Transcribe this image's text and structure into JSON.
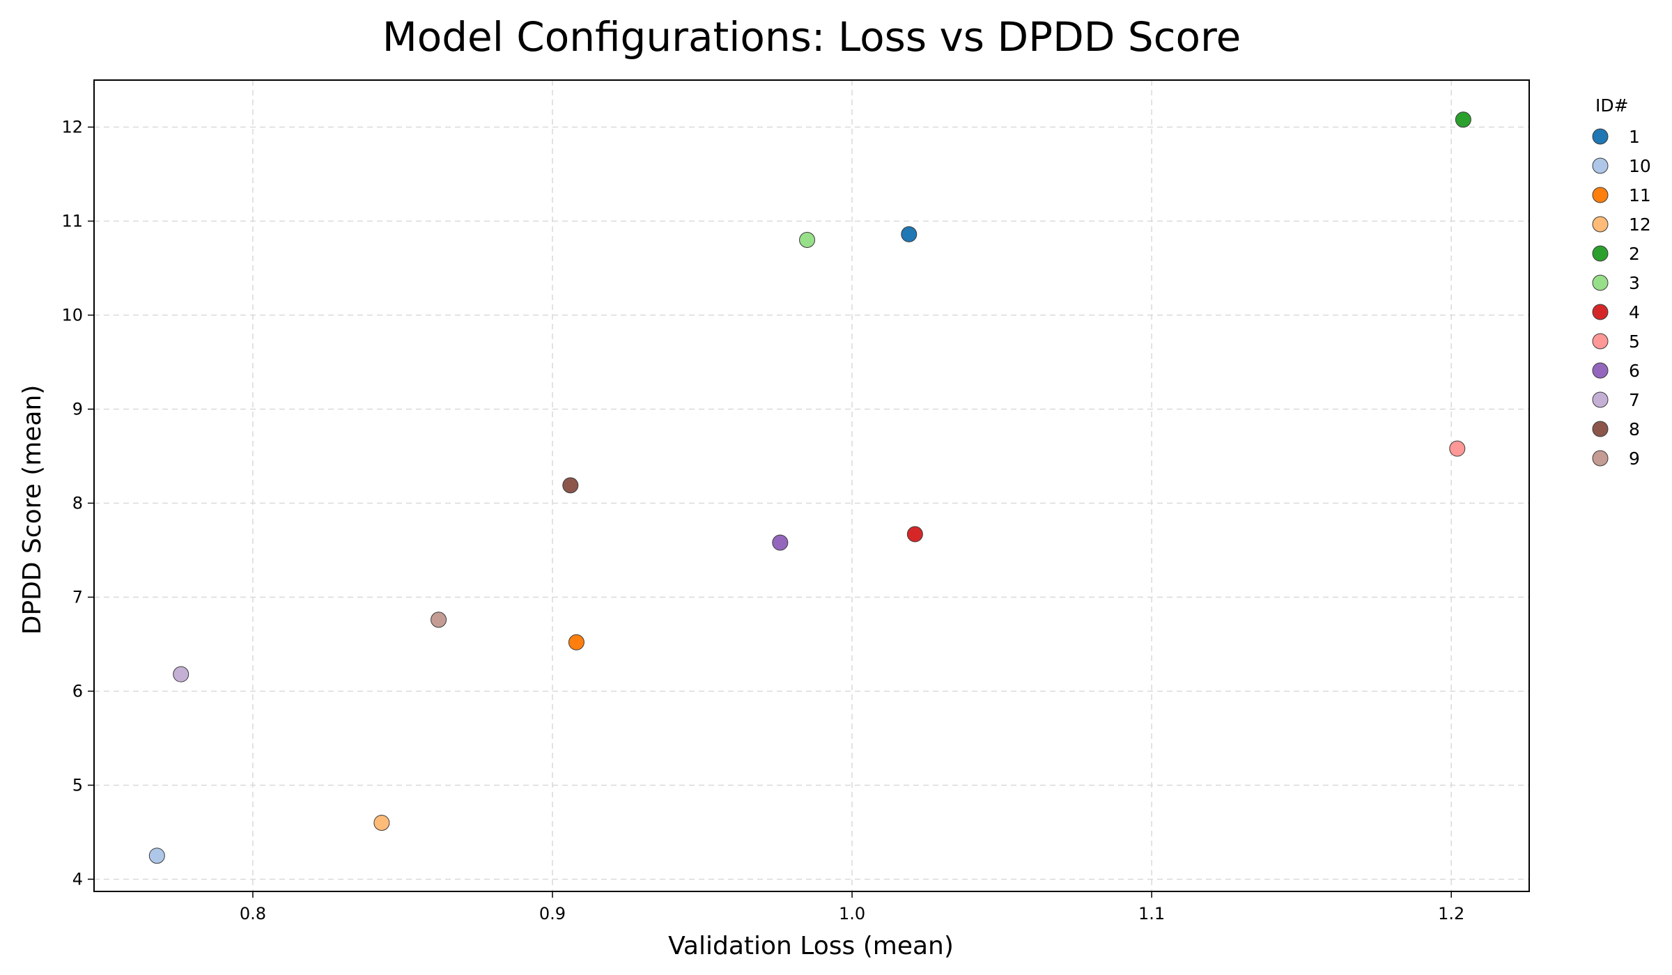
{
  "chart_data": {
    "type": "scatter",
    "title": "Model Configurations: Loss vs DPDD Score",
    "xlabel": "Validation Loss (mean)",
    "ylabel": "DPDD Score (mean)",
    "xlim": [
      0.747,
      1.226
    ],
    "ylim": [
      3.87,
      12.5
    ],
    "xticks": [
      0.8,
      0.9,
      1.0,
      1.1,
      1.2
    ],
    "xtick_labels": [
      "0.8",
      "0.9",
      "1.0",
      "1.1",
      "1.2"
    ],
    "yticks": [
      4,
      5,
      6,
      7,
      8,
      9,
      10,
      11,
      12
    ],
    "ytick_labels": [
      "4",
      "5",
      "6",
      "7",
      "8",
      "9",
      "10",
      "11",
      "12"
    ],
    "grid": true,
    "legend": {
      "title": "ID#",
      "placement": "outside-right"
    },
    "series": [
      {
        "name": "1",
        "color": "#1f77b4",
        "x": 1.019,
        "y": 10.86
      },
      {
        "name": "10",
        "color": "#aec7e8",
        "x": 0.768,
        "y": 4.25
      },
      {
        "name": "11",
        "color": "#ff7f0e",
        "x": 0.908,
        "y": 6.52
      },
      {
        "name": "12",
        "color": "#ffbb78",
        "x": 0.843,
        "y": 4.6
      },
      {
        "name": "2",
        "color": "#2ca02c",
        "x": 1.204,
        "y": 12.08
      },
      {
        "name": "3",
        "color": "#98df8a",
        "x": 0.985,
        "y": 10.8
      },
      {
        "name": "4",
        "color": "#d62728",
        "x": 1.021,
        "y": 7.67
      },
      {
        "name": "5",
        "color": "#ff9896",
        "x": 1.202,
        "y": 8.58
      },
      {
        "name": "6",
        "color": "#9467bd",
        "x": 0.976,
        "y": 7.58
      },
      {
        "name": "7",
        "color": "#c5b0d5",
        "x": 0.776,
        "y": 6.18
      },
      {
        "name": "8",
        "color": "#8c564b",
        "x": 0.906,
        "y": 8.19
      },
      {
        "name": "9",
        "color": "#c49c94",
        "x": 0.862,
        "y": 6.76
      }
    ]
  }
}
